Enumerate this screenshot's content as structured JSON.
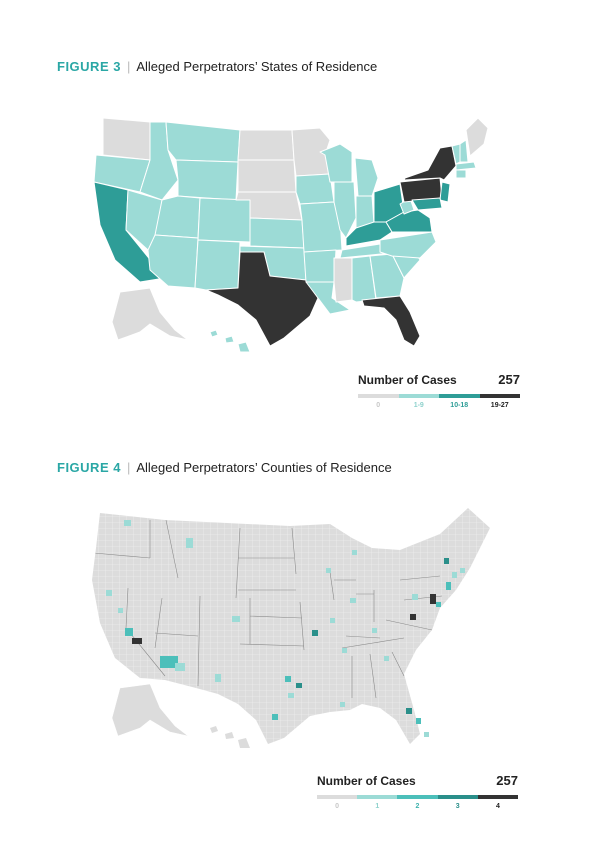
{
  "figure3": {
    "number": "FIGURE 3",
    "separator": "|",
    "title": "Alleged Perpetrators’ States of Residence",
    "legend": {
      "title": "Number of Cases",
      "total": "257",
      "bins": [
        {
          "label": "0",
          "color": "#dcdcdc",
          "label_color": "#c8c8c8"
        },
        {
          "label": "1-9",
          "color": "#9cdbd6",
          "label_color": "#8fd2cd"
        },
        {
          "label": "10-18",
          "color": "#2e9d97",
          "label_color": "#2e9d97"
        },
        {
          "label": "19-27",
          "color": "#333333",
          "label_color": "#222222"
        }
      ]
    }
  },
  "figure4": {
    "number": "FIGURE 4",
    "separator": "|",
    "title": "Alleged Perpetrators’ Counties of Residence",
    "legend": {
      "title": "Number of Cases",
      "total": "257",
      "bins": [
        {
          "label": "0",
          "color": "#dcdcdc",
          "label_color": "#c8c8c8"
        },
        {
          "label": "1",
          "color": "#9cdbd6",
          "label_color": "#8fd2cd"
        },
        {
          "label": "2",
          "color": "#4cbfba",
          "label_color": "#3fb3ae"
        },
        {
          "label": "3",
          "color": "#2a8f8a",
          "label_color": "#2a8f8a"
        },
        {
          "label": "4",
          "color": "#333333",
          "label_color": "#222222"
        }
      ]
    }
  },
  "colors": {
    "accent": "#2aa7a5",
    "none": "#dcdcdc",
    "low": "#9cdbd6",
    "mid": "#2e9d97",
    "high": "#333333"
  }
}
